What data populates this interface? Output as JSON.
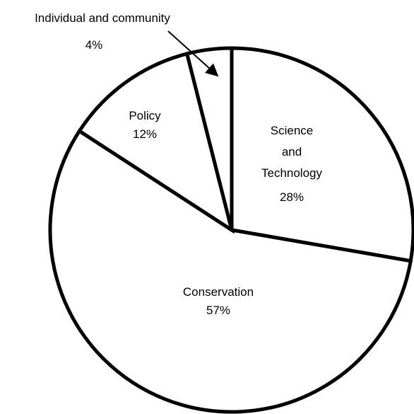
{
  "chart_data": {
    "type": "pie",
    "slices": [
      {
        "label_lines": [
          "Science",
          "and",
          "Technology"
        ],
        "value": 28,
        "value_label": "28%"
      },
      {
        "label_lines": [
          "Conservation"
        ],
        "value": 57,
        "value_label": "57%"
      },
      {
        "label_lines": [
          "Policy"
        ],
        "value": 12,
        "value_label": "12%"
      },
      {
        "label_lines": [
          "Individual and community"
        ],
        "value": 4,
        "value_label": "4%"
      }
    ],
    "colors": {
      "fill": "#ffffff",
      "stroke": "#000000"
    }
  }
}
